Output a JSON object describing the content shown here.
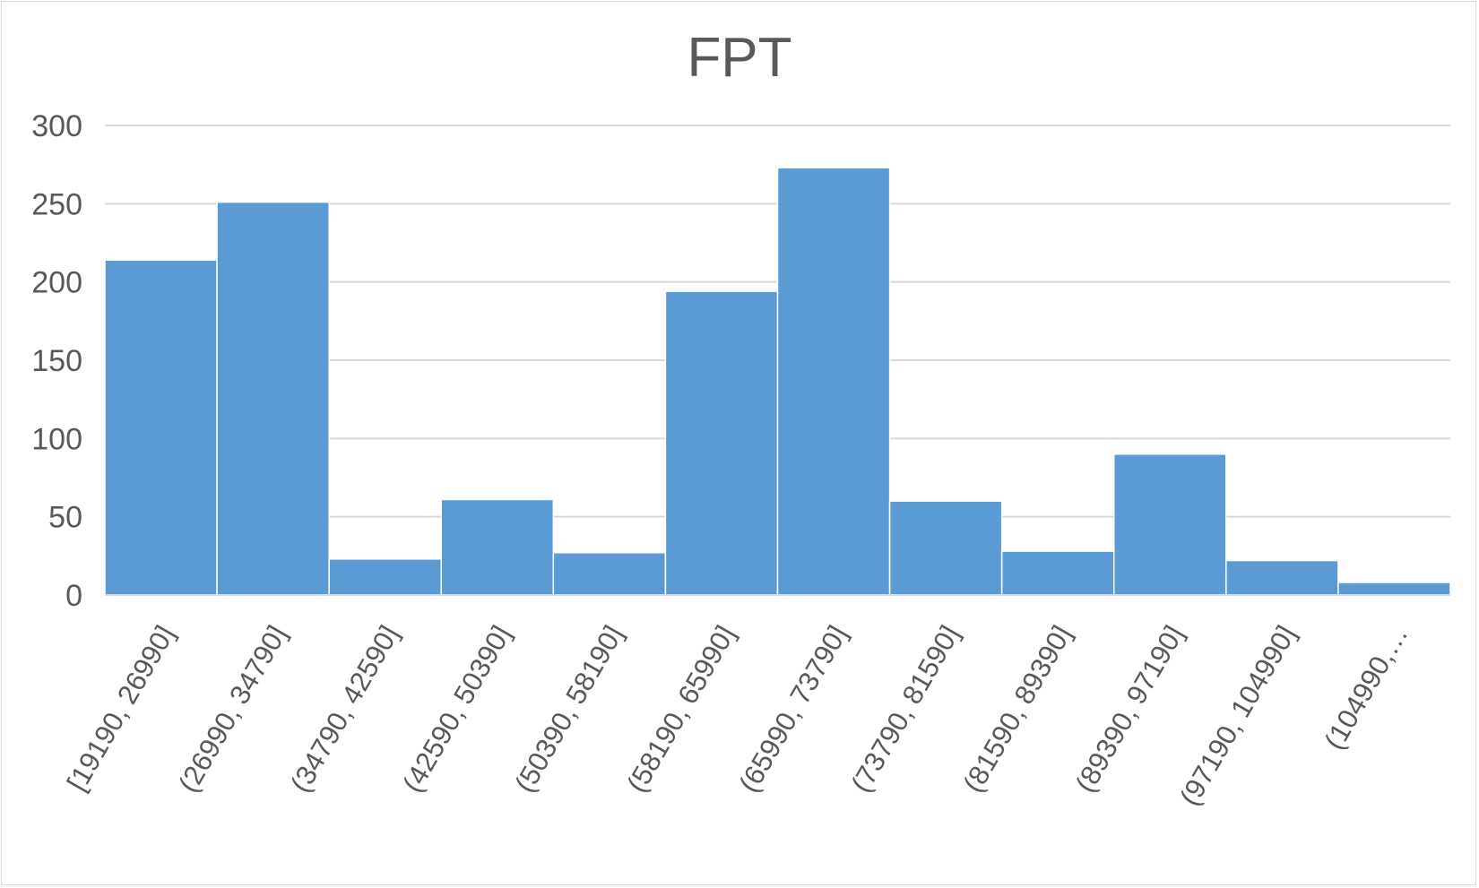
{
  "chart_data": {
    "type": "bar",
    "title": "FPT",
    "xlabel": "",
    "ylabel": "",
    "ylim": [
      0,
      300
    ],
    "yticks": [
      "0",
      "50",
      "100",
      "150",
      "200",
      "250",
      "300"
    ],
    "grid": true,
    "legend": "none",
    "bar_color": "#5B9BD5",
    "categories": [
      "[19190, 26990]",
      "(26990, 34790]",
      "(34790, 42590]",
      "(42590, 50390]",
      "(50390, 58190]",
      "(58190, 65990]",
      "(65990, 73790]",
      "(73790, 81590]",
      "(81590, 89390]",
      "(89390, 97190]",
      "(97190, 104990]",
      "(104990,…"
    ],
    "values": [
      214,
      251,
      23,
      61,
      27,
      194,
      273,
      60,
      28,
      90,
      22,
      8
    ]
  }
}
